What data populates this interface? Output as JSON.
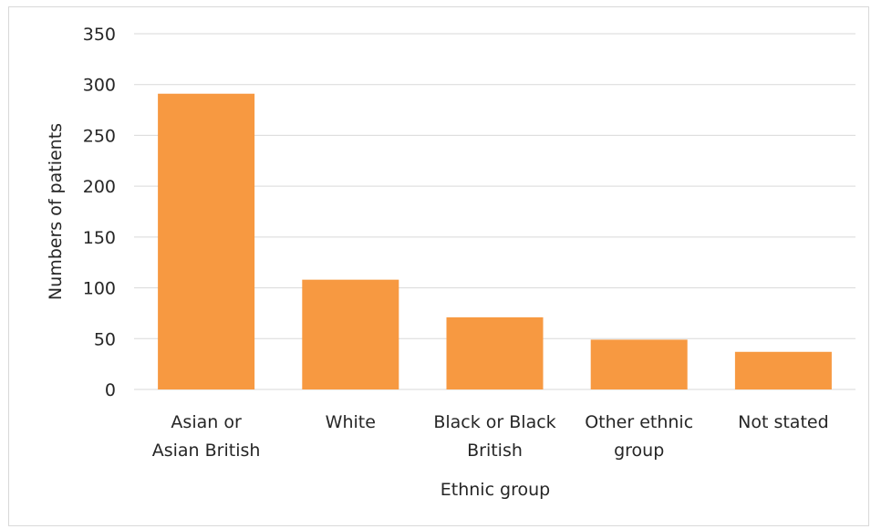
{
  "chart_data": {
    "type": "bar",
    "title": "",
    "xlabel": "Ethnic group",
    "ylabel": "Numbers of patients",
    "categories": [
      [
        "Asian or",
        "Asian British"
      ],
      [
        "White"
      ],
      [
        "Black or Black",
        "British"
      ],
      [
        "Other ethnic",
        "group"
      ],
      [
        "Not stated"
      ]
    ],
    "values": [
      291,
      108,
      71,
      49,
      37
    ],
    "ylim": [
      0,
      350
    ],
    "yticks": [
      0,
      50,
      100,
      150,
      200,
      250,
      300,
      350
    ],
    "grid": true,
    "legend": "none",
    "colors": {
      "bar": "#F79941",
      "grid": "#d9d9d9",
      "text": "#262626"
    }
  }
}
